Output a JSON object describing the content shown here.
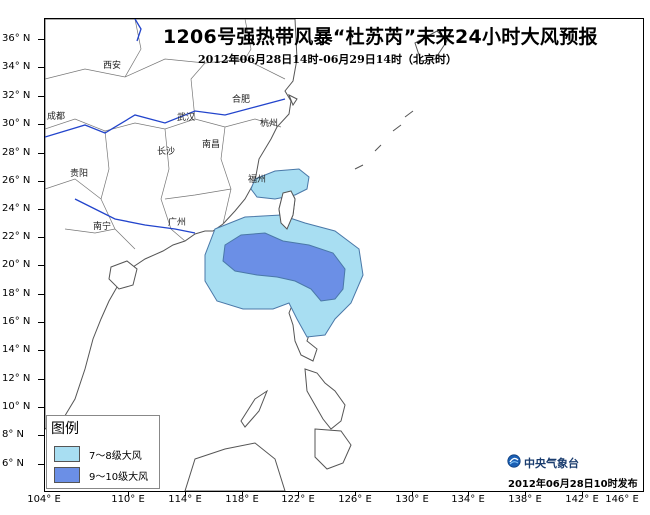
{
  "title": "1206号强热带风暴“杜苏芮”未来24小时大风预报",
  "subtitle": "2012年06月28日14时-06月29日14时（北京时）",
  "latitude_labels": [
    "36° N",
    "34° N",
    "32° N",
    "30° N",
    "28° N",
    "26° N",
    "24° N",
    "22° N",
    "20° N",
    "18° N",
    "16° N",
    "14° N",
    "12° N",
    "10° N",
    "8° N",
    "6° N"
  ],
  "longitude_labels": [
    "104° E",
    "110° E",
    "114° E",
    "118° E",
    "122° E",
    "126° E",
    "130° E",
    "134° E",
    "138° E",
    "142° E",
    "146° E"
  ],
  "cities": {
    "xian": "西安",
    "hefei": "合肥",
    "chengdu": "成都",
    "wuhan": "武汉",
    "hangzhou": "杭州",
    "changsha": "长沙",
    "nanchang": "南昌",
    "guiyang": "贵阳",
    "fuzhou": "福州",
    "nanning": "南宁",
    "guangzhou": "广州"
  },
  "legend": {
    "title": "图例",
    "items": [
      {
        "label": "7～8级大风",
        "color": "#a8def2"
      },
      {
        "label": "9～10级大风",
        "color": "#6b8fe6"
      }
    ]
  },
  "publisher": "中央气象台",
  "issue_time": "2012年06月28日10时发布",
  "colors": {
    "land": "#ffffff",
    "coast": "#555555",
    "province_border": "#777777",
    "river": "#2244cc",
    "wind_7_8": "#a8def2",
    "wind_9_10": "#6b8fe6",
    "wind_outline": "#4a78a8"
  }
}
